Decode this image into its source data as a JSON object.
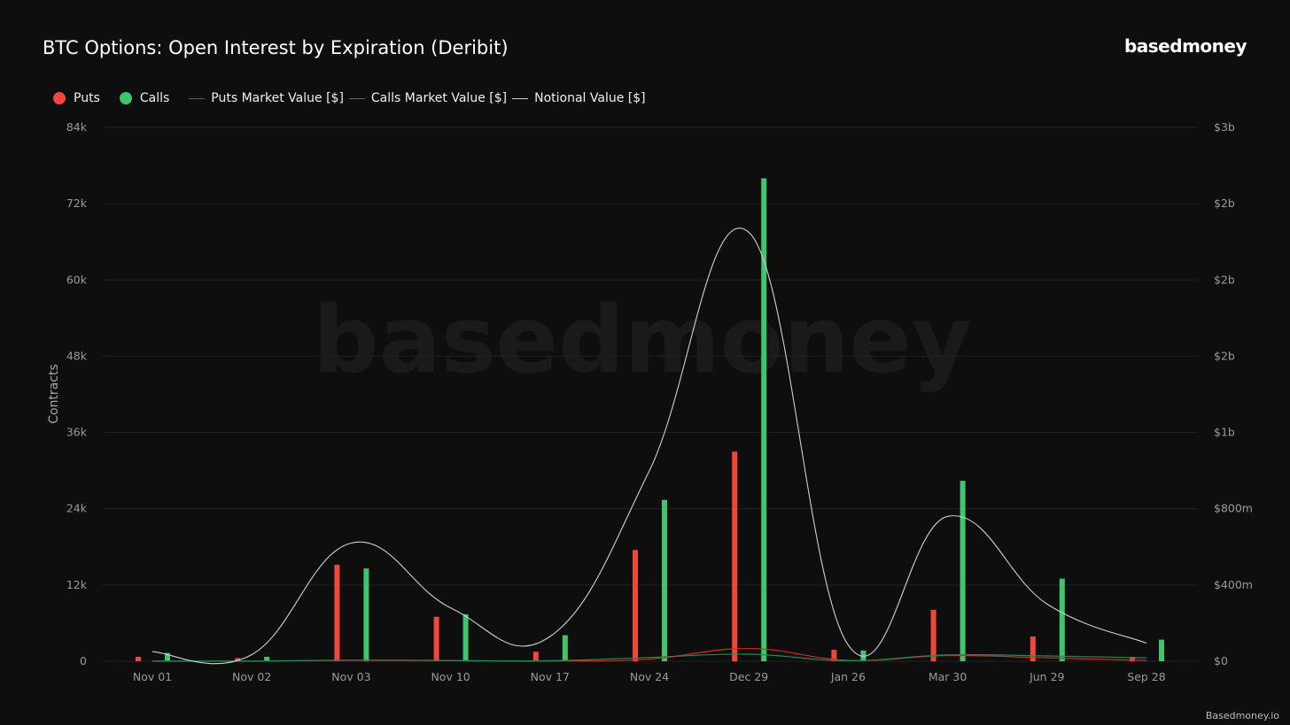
{
  "header": {
    "title": "BTC Options: Open Interest by Expiration (Deribit)",
    "brand": "basedmoney"
  },
  "footer": {
    "credit": "Basedmoney.io"
  },
  "watermark": "basedmoney",
  "colors": {
    "background": "#0e0e0e",
    "puts": "#f0473c",
    "calls": "#3fc56b",
    "puts_mv_line": "#d6291c",
    "calls_mv_line": "#1f8a55",
    "notional_line": "#cfcfcf",
    "grid": "#222222"
  },
  "legend": [
    {
      "label": "Puts",
      "kind": "dot",
      "color": "#f0473c"
    },
    {
      "label": "Calls",
      "kind": "dot",
      "color": "#3fc56b"
    },
    {
      "label": "Puts Market Value [$]",
      "kind": "line",
      "color": "#d6291c"
    },
    {
      "label": "Calls Market Value [$]",
      "kind": "line",
      "color": "#1f8a55"
    },
    {
      "label": "Notional Value [$]",
      "kind": "line",
      "color": "#cfcfcf"
    }
  ],
  "chart_data": {
    "type": "bar",
    "title": "BTC Options: Open Interest by Expiration (Deribit)",
    "categories": [
      "Nov 01",
      "Nov 02",
      "Nov 03",
      "Nov 10",
      "Nov 17",
      "Nov 24",
      "Dec 29",
      "Jan 26",
      "Mar 30",
      "Jun 29",
      "Sep 28"
    ],
    "ylabel": "Contracts",
    "ylim": [
      0,
      84000
    ],
    "yticks": [
      0,
      12000,
      24000,
      36000,
      48000,
      60000,
      72000,
      84000
    ],
    "ytick_labels": [
      "0",
      "12k",
      "24k",
      "36k",
      "48k",
      "60k",
      "72k",
      "84k"
    ],
    "y2lim": [
      0,
      2800000000
    ],
    "y2ticks": [
      0,
      400000000,
      800000000,
      1200000000,
      1600000000,
      2000000000,
      2400000000,
      2800000000
    ],
    "y2tick_labels": [
      "$0",
      "$400m",
      "$800m",
      "$1b",
      "$2b",
      "$2b",
      "$2b",
      "$3b"
    ],
    "legend_position": "top-left",
    "grid": true,
    "series": [
      {
        "name": "Puts",
        "kind": "bar",
        "axis": "left",
        "values": [
          700,
          500,
          15200,
          7000,
          1500,
          17500,
          33000,
          1800,
          8100,
          3900,
          700
        ]
      },
      {
        "name": "Calls",
        "kind": "bar",
        "axis": "left",
        "values": [
          1300,
          700,
          14600,
          7400,
          4100,
          25400,
          76000,
          1700,
          28400,
          13000,
          3400
        ]
      },
      {
        "name": "Puts Market Value [$]",
        "kind": "line",
        "axis": "right",
        "values": [
          0,
          0,
          5000000,
          3000000,
          1000000,
          12000000,
          67000000,
          5000000,
          30000000,
          18000000,
          4000000
        ]
      },
      {
        "name": "Calls Market Value [$]",
        "kind": "line",
        "axis": "right",
        "values": [
          1000000,
          1000000,
          6000000,
          4000000,
          3000000,
          20000000,
          37000000,
          3000000,
          33000000,
          28000000,
          18000000
        ]
      },
      {
        "name": "Notional Value [$]",
        "kind": "line",
        "axis": "right",
        "values": [
          50000000,
          35000000,
          620000000,
          280000000,
          130000000,
          1000000000,
          2250000000,
          85000000,
          760000000,
          300000000,
          95000000
        ]
      }
    ]
  }
}
